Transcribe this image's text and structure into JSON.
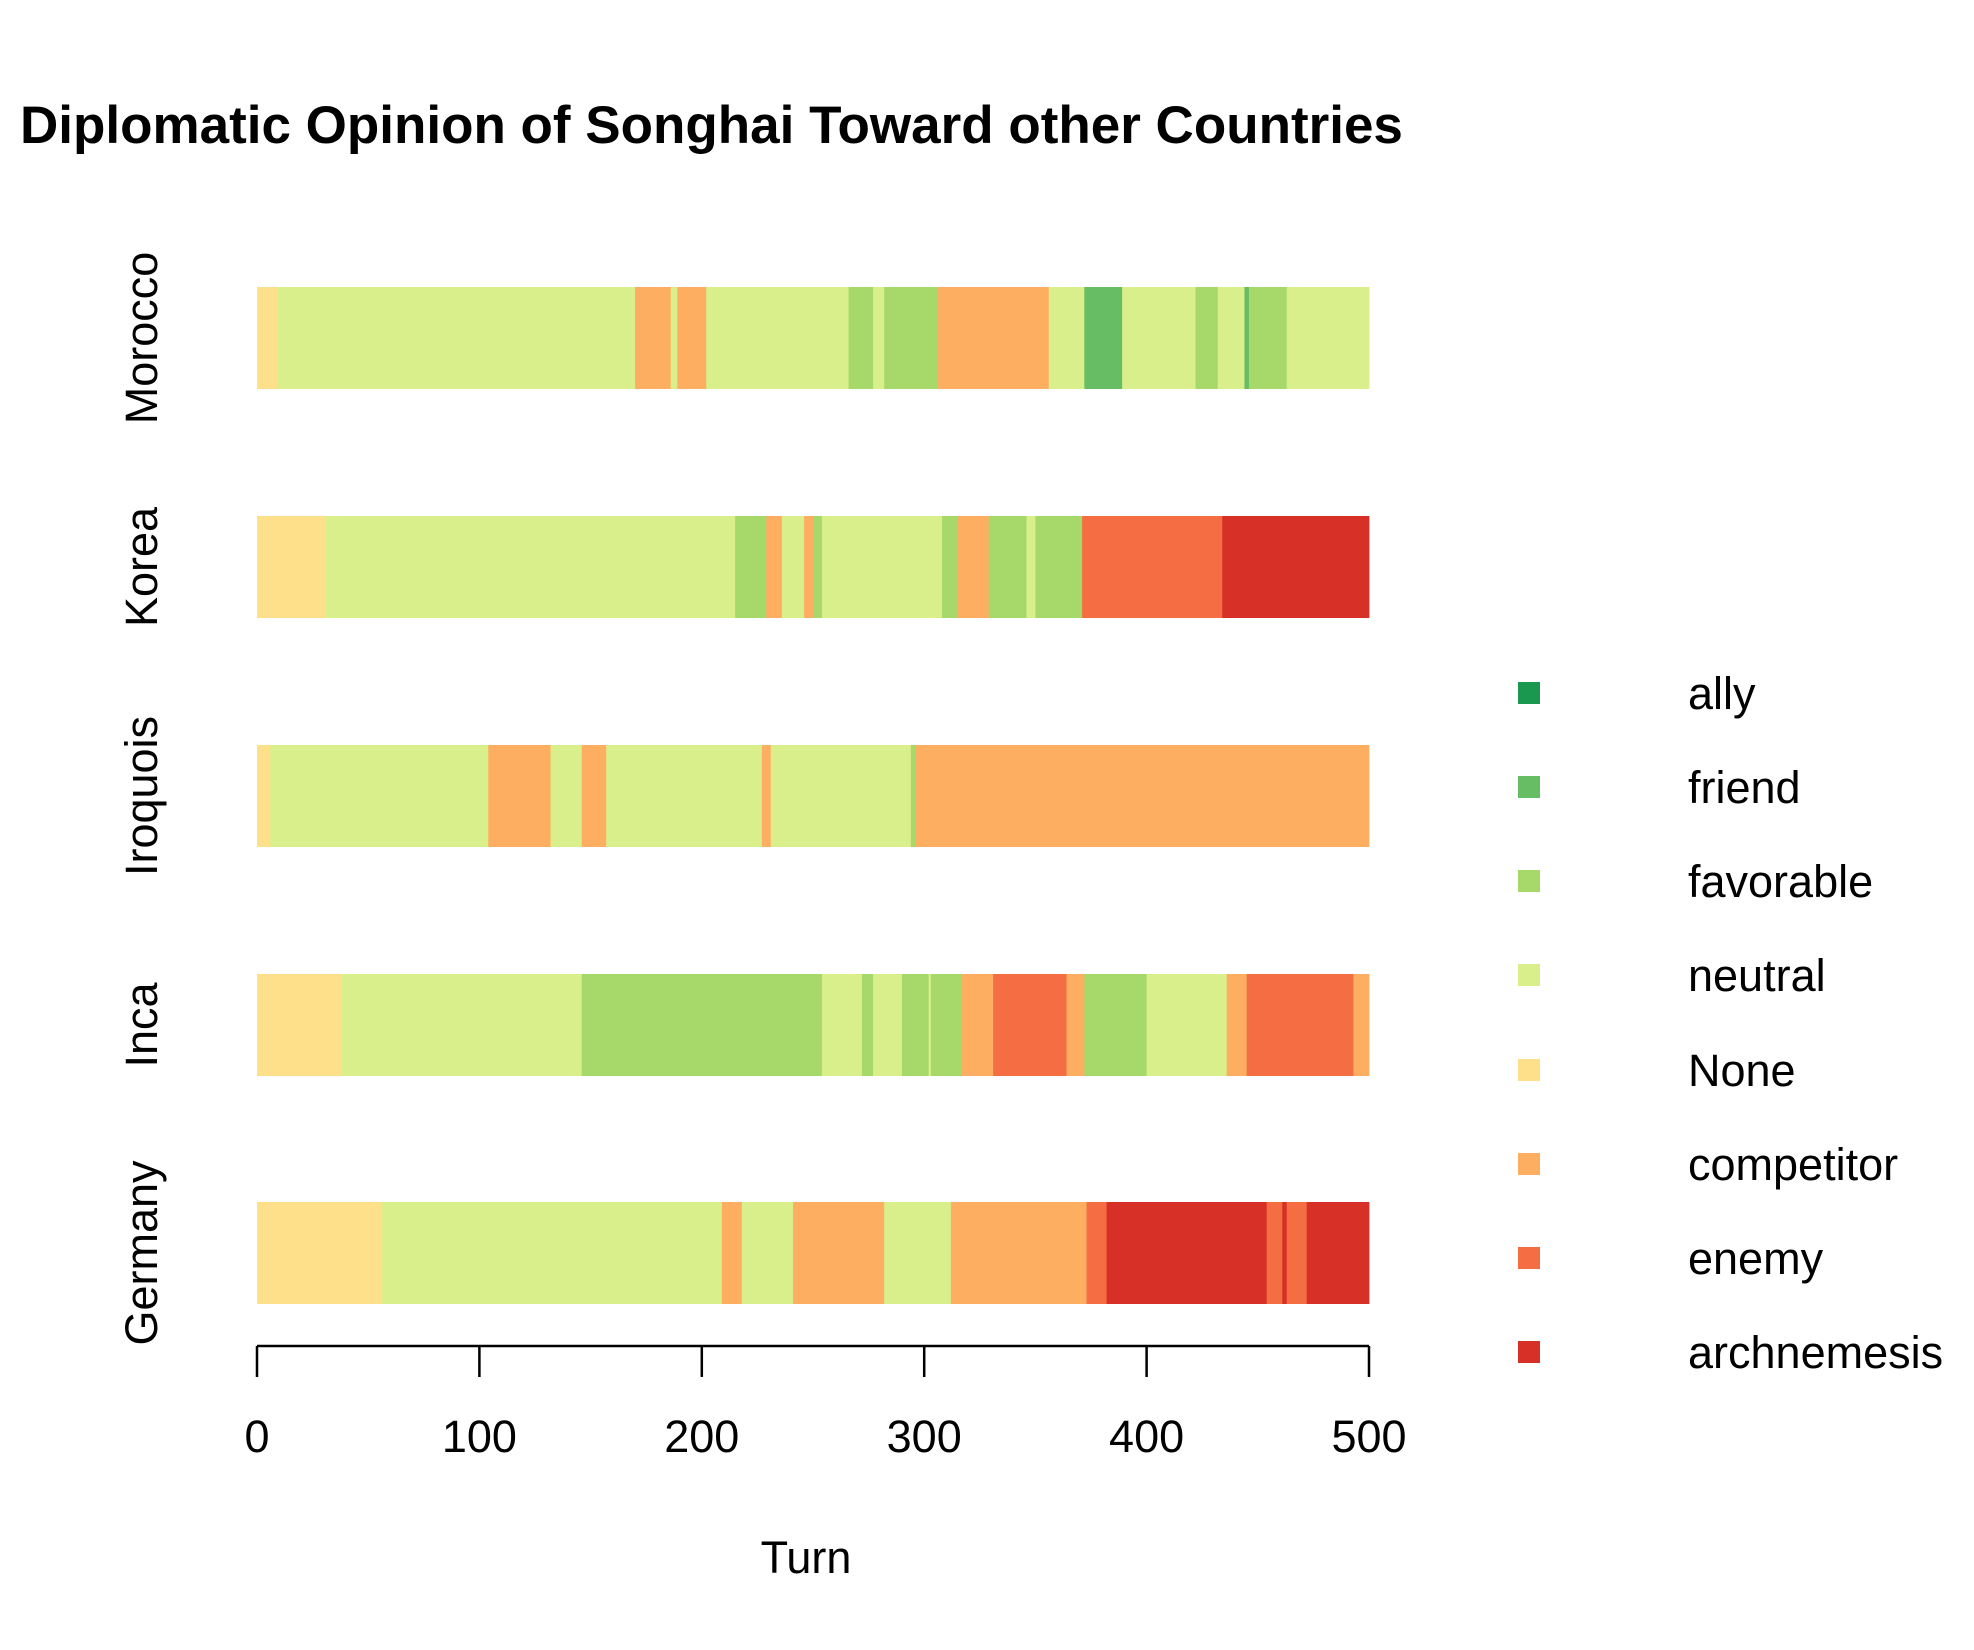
{
  "chart_data": {
    "type": "bar",
    "orientation": "horizontal-stacked-timeline",
    "title": "Diplomatic Opinion of Songhai Toward other Countries",
    "xlabel": "Turn",
    "ylabel": "",
    "xlim": [
      0,
      500
    ],
    "xticks": [
      0,
      100,
      200,
      300,
      400,
      500
    ],
    "grid": false,
    "legend_position": "right",
    "categories": [
      "ally",
      "friend",
      "favorable",
      "neutral",
      "None",
      "competitor",
      "enemy",
      "archnemesis"
    ],
    "colors": {
      "ally": "#1a9850",
      "friend": "#66bd63",
      "favorable": "#a6d96a",
      "neutral": "#d9ef8b",
      "None": "#fee08b",
      "competitor": "#fdae61",
      "enemy": "#f46d43",
      "archnemesis": "#d73027"
    },
    "countries": [
      {
        "name": "Morocco",
        "segments": [
          {
            "start": 0,
            "end": 9,
            "state": "None"
          },
          {
            "start": 9,
            "end": 170,
            "state": "neutral"
          },
          {
            "start": 170,
            "end": 186,
            "state": "competitor"
          },
          {
            "start": 186,
            "end": 189,
            "state": "neutral"
          },
          {
            "start": 189,
            "end": 202,
            "state": "competitor"
          },
          {
            "start": 202,
            "end": 266,
            "state": "neutral"
          },
          {
            "start": 266,
            "end": 277,
            "state": "favorable"
          },
          {
            "start": 277,
            "end": 282,
            "state": "neutral"
          },
          {
            "start": 282,
            "end": 306,
            "state": "favorable"
          },
          {
            "start": 306,
            "end": 356,
            "state": "competitor"
          },
          {
            "start": 356,
            "end": 372,
            "state": "neutral"
          },
          {
            "start": 372,
            "end": 389,
            "state": "friend"
          },
          {
            "start": 389,
            "end": 422,
            "state": "neutral"
          },
          {
            "start": 422,
            "end": 432,
            "state": "favorable"
          },
          {
            "start": 432,
            "end": 444,
            "state": "neutral"
          },
          {
            "start": 444,
            "end": 446,
            "state": "friend"
          },
          {
            "start": 446,
            "end": 463,
            "state": "favorable"
          },
          {
            "start": 463,
            "end": 500,
            "state": "neutral"
          }
        ]
      },
      {
        "name": "Korea",
        "segments": [
          {
            "start": 0,
            "end": 31,
            "state": "None"
          },
          {
            "start": 31,
            "end": 215,
            "state": "neutral"
          },
          {
            "start": 215,
            "end": 229,
            "state": "favorable"
          },
          {
            "start": 229,
            "end": 236,
            "state": "competitor"
          },
          {
            "start": 236,
            "end": 246,
            "state": "neutral"
          },
          {
            "start": 246,
            "end": 250,
            "state": "competitor"
          },
          {
            "start": 250,
            "end": 254,
            "state": "favorable"
          },
          {
            "start": 254,
            "end": 308,
            "state": "neutral"
          },
          {
            "start": 308,
            "end": 315,
            "state": "favorable"
          },
          {
            "start": 315,
            "end": 329,
            "state": "competitor"
          },
          {
            "start": 329,
            "end": 346,
            "state": "favorable"
          },
          {
            "start": 346,
            "end": 350,
            "state": "neutral"
          },
          {
            "start": 350,
            "end": 371,
            "state": "favorable"
          },
          {
            "start": 371,
            "end": 434,
            "state": "enemy"
          },
          {
            "start": 434,
            "end": 500,
            "state": "archnemesis"
          }
        ]
      },
      {
        "name": "Iroquois",
        "segments": [
          {
            "start": 0,
            "end": 6,
            "state": "None"
          },
          {
            "start": 6,
            "end": 104,
            "state": "neutral"
          },
          {
            "start": 104,
            "end": 132,
            "state": "competitor"
          },
          {
            "start": 132,
            "end": 146,
            "state": "neutral"
          },
          {
            "start": 146,
            "end": 157,
            "state": "competitor"
          },
          {
            "start": 157,
            "end": 227,
            "state": "neutral"
          },
          {
            "start": 227,
            "end": 231,
            "state": "competitor"
          },
          {
            "start": 231,
            "end": 294,
            "state": "neutral"
          },
          {
            "start": 294,
            "end": 296,
            "state": "favorable"
          },
          {
            "start": 296,
            "end": 500,
            "state": "competitor"
          }
        ]
      },
      {
        "name": "Inca",
        "segments": [
          {
            "start": 0,
            "end": 38,
            "state": "None"
          },
          {
            "start": 38,
            "end": 146,
            "state": "neutral"
          },
          {
            "start": 146,
            "end": 254,
            "state": "favorable"
          },
          {
            "start": 254,
            "end": 272,
            "state": "neutral"
          },
          {
            "start": 272,
            "end": 277,
            "state": "favorable"
          },
          {
            "start": 277,
            "end": 290,
            "state": "neutral"
          },
          {
            "start": 290,
            "end": 302,
            "state": "favorable"
          },
          {
            "start": 302,
            "end": 303,
            "state": "neutral"
          },
          {
            "start": 303,
            "end": 317,
            "state": "favorable"
          },
          {
            "start": 317,
            "end": 331,
            "state": "competitor"
          },
          {
            "start": 331,
            "end": 364,
            "state": "enemy"
          },
          {
            "start": 364,
            "end": 372,
            "state": "competitor"
          },
          {
            "start": 372,
            "end": 400,
            "state": "favorable"
          },
          {
            "start": 400,
            "end": 436,
            "state": "neutral"
          },
          {
            "start": 436,
            "end": 445,
            "state": "competitor"
          },
          {
            "start": 445,
            "end": 493,
            "state": "enemy"
          },
          {
            "start": 493,
            "end": 500,
            "state": "competitor"
          }
        ]
      },
      {
        "name": "Germany",
        "segments": [
          {
            "start": 0,
            "end": 56,
            "state": "None"
          },
          {
            "start": 56,
            "end": 209,
            "state": "neutral"
          },
          {
            "start": 209,
            "end": 218,
            "state": "competitor"
          },
          {
            "start": 218,
            "end": 241,
            "state": "neutral"
          },
          {
            "start": 241,
            "end": 282,
            "state": "competitor"
          },
          {
            "start": 282,
            "end": 312,
            "state": "neutral"
          },
          {
            "start": 312,
            "end": 373,
            "state": "competitor"
          },
          {
            "start": 373,
            "end": 382,
            "state": "enemy"
          },
          {
            "start": 382,
            "end": 454,
            "state": "archnemesis"
          },
          {
            "start": 454,
            "end": 461,
            "state": "enemy"
          },
          {
            "start": 461,
            "end": 463,
            "state": "archnemesis"
          },
          {
            "start": 463,
            "end": 472,
            "state": "enemy"
          },
          {
            "start": 472,
            "end": 500,
            "state": "archnemesis"
          }
        ]
      }
    ]
  }
}
